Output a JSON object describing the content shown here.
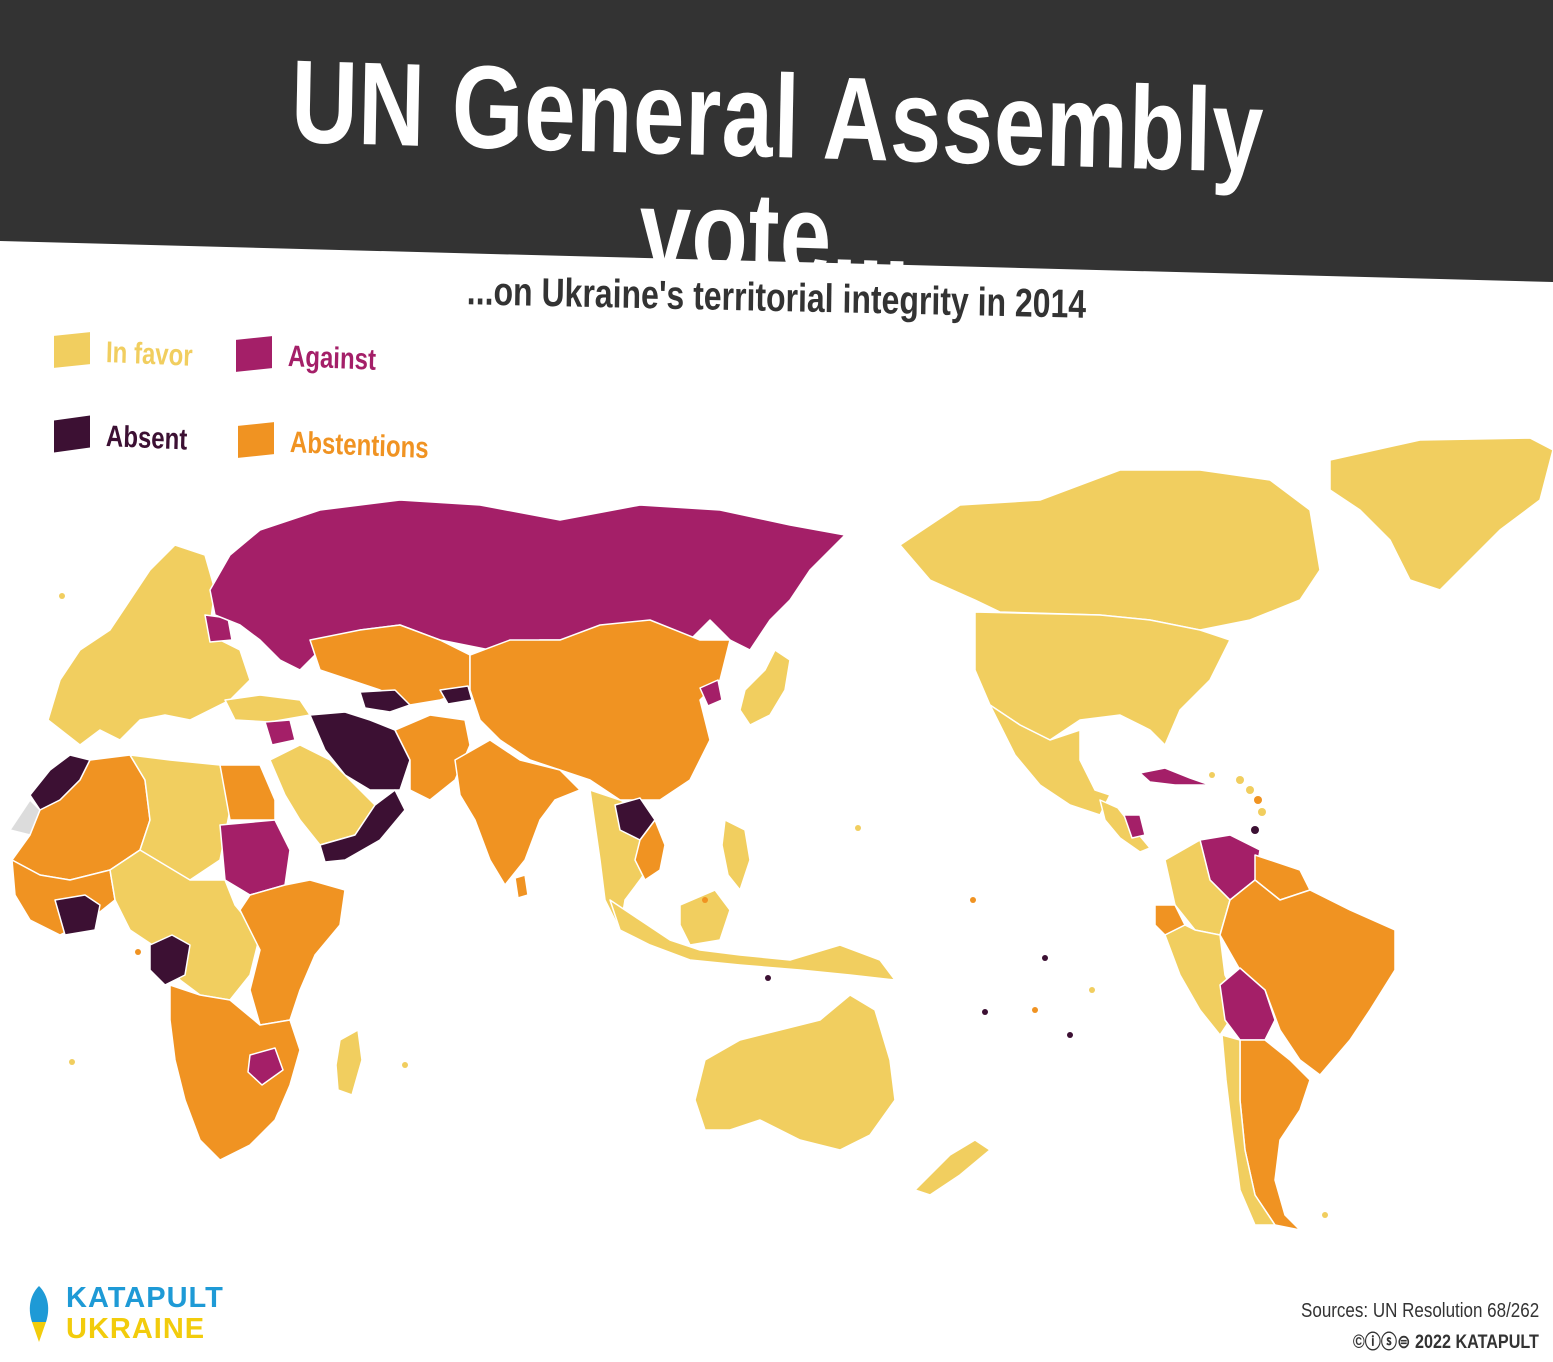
{
  "title": "UN General Assembly vote...",
  "subtitle": "...on Ukraine's territorial integrity in 2014",
  "colors": {
    "header_bg": "#333333",
    "in_favor": "#f1ce5f",
    "against": "#a41f68",
    "absent": "#3c1033",
    "abstentions": "#f09322",
    "no_data": "#dcdcdc",
    "border": "#ffffff",
    "brand_blue": "#1e9ad6",
    "brand_yellow": "#f2cc0c"
  },
  "legend": [
    {
      "key": "in_favor",
      "label": "In favor"
    },
    {
      "key": "against",
      "label": "Against"
    },
    {
      "key": "absent",
      "label": "Absent"
    },
    {
      "key": "abstentions",
      "label": "Abstentions"
    }
  ],
  "map": {
    "projection": "Pacific-centered world map",
    "regions": [
      {
        "name": "Europe",
        "vote": "in_favor"
      },
      {
        "name": "Russia",
        "vote": "against"
      },
      {
        "name": "Belarus",
        "vote": "against"
      },
      {
        "name": "Kazakhstan",
        "vote": "abstentions"
      },
      {
        "name": "China",
        "vote": "abstentions"
      },
      {
        "name": "India",
        "vote": "abstentions"
      },
      {
        "name": "Iran",
        "vote": "absent"
      },
      {
        "name": "Turkey",
        "vote": "in_favor"
      },
      {
        "name": "Saudi Arabia",
        "vote": "in_favor"
      },
      {
        "name": "Yemen",
        "vote": "absent"
      },
      {
        "name": "Oman",
        "vote": "absent"
      },
      {
        "name": "Syria",
        "vote": "against"
      },
      {
        "name": "North Korea",
        "vote": "against"
      },
      {
        "name": "Japan",
        "vote": "in_favor"
      },
      {
        "name": "Southeast Asia",
        "vote": "in_favor"
      },
      {
        "name": "Laos",
        "vote": "absent"
      },
      {
        "name": "Vietnam",
        "vote": "abstentions"
      },
      {
        "name": "Indonesia",
        "vote": "in_favor"
      },
      {
        "name": "Australia",
        "vote": "in_favor"
      },
      {
        "name": "New Zealand",
        "vote": "in_favor"
      },
      {
        "name": "Morocco",
        "vote": "absent"
      },
      {
        "name": "Algeria",
        "vote": "abstentions"
      },
      {
        "name": "Libya",
        "vote": "in_favor"
      },
      {
        "name": "Egypt",
        "vote": "abstentions"
      },
      {
        "name": "Sudan",
        "vote": "against"
      },
      {
        "name": "West Africa",
        "vote": "abstentions"
      },
      {
        "name": "Ivory Coast",
        "vote": "absent"
      },
      {
        "name": "Central Africa",
        "vote": "in_favor"
      },
      {
        "name": "Congo",
        "vote": "absent"
      },
      {
        "name": "East Africa",
        "vote": "abstentions"
      },
      {
        "name": "Southern Africa",
        "vote": "abstentions"
      },
      {
        "name": "Zimbabwe",
        "vote": "against"
      },
      {
        "name": "Madagascar",
        "vote": "in_favor"
      },
      {
        "name": "Canada",
        "vote": "in_favor"
      },
      {
        "name": "United States",
        "vote": "in_favor"
      },
      {
        "name": "Mexico",
        "vote": "in_favor"
      },
      {
        "name": "Cuba",
        "vote": "against"
      },
      {
        "name": "Nicaragua",
        "vote": "against"
      },
      {
        "name": "Venezuela",
        "vote": "against"
      },
      {
        "name": "Colombia",
        "vote": "in_favor"
      },
      {
        "name": "Ecuador",
        "vote": "abstentions"
      },
      {
        "name": "Peru",
        "vote": "in_favor"
      },
      {
        "name": "Brazil",
        "vote": "abstentions"
      },
      {
        "name": "Bolivia",
        "vote": "against"
      },
      {
        "name": "Argentina",
        "vote": "abstentions"
      },
      {
        "name": "Chile",
        "vote": "in_favor"
      },
      {
        "name": "Greenland",
        "vote": "in_favor"
      }
    ]
  },
  "brand": {
    "line1": "KATAPULT",
    "line2": "UKRAINE",
    "icon": "rocket-icon"
  },
  "sources": "Sources: UN Resolution 68/262",
  "copyright": "©ⓘⓢ⊜ 2022 KATAPULT"
}
